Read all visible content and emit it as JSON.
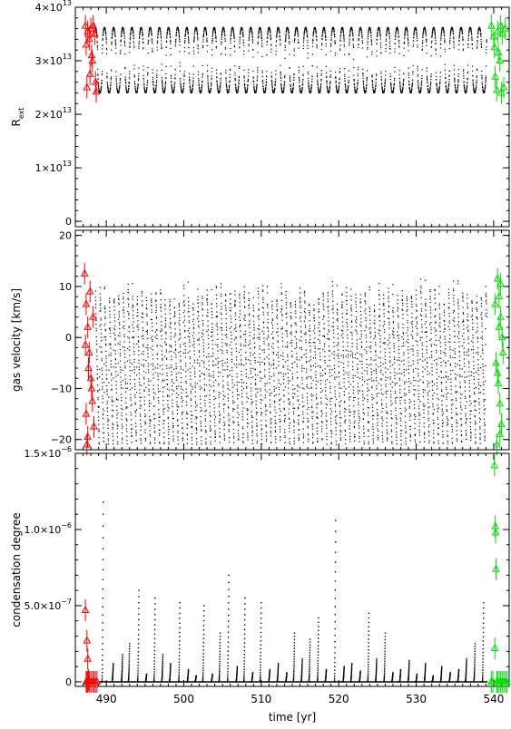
{
  "chart_data": [
    {
      "type": "scatter",
      "ylabel": "R",
      "ylabel_sub": "ext",
      "xlim": [
        486,
        542
      ],
      "ylim": [
        -1000000000000.0,
        40000000000000.0
      ],
      "yticks": [
        {
          "v": 0,
          "mant": "0",
          "exp": ""
        },
        {
          "v": 10000000000000.0,
          "mant": "1×10",
          "exp": "13"
        },
        {
          "v": 20000000000000.0,
          "mant": "2×10",
          "exp": "13"
        },
        {
          "v": 30000000000000.0,
          "mant": "3×10",
          "exp": "13"
        },
        {
          "v": 40000000000000.0,
          "mant": "4×10",
          "exp": "13"
        }
      ],
      "series": [
        {
          "color": "#000000",
          "marker": "dot",
          "mode": "periodic",
          "x_start": 488.6,
          "x_end": 539.1,
          "period": 1.18,
          "y_min": 24000000000000.0,
          "y_max": 36200000000000.0
        },
        {
          "color": "#ff0000",
          "marker": "triangle",
          "x": [
            487.3,
            487.6,
            487.8,
            487.5,
            487.9,
            488.1,
            488.3,
            488.5,
            488.2,
            488.7,
            487.4,
            488.6,
            488.0
          ],
          "y": [
            36500000000000.0,
            35500000000000.0,
            34000000000000.0,
            25000000000000.0,
            27500000000000.0,
            31000000000000.0,
            36500000000000.0,
            35000000000000.0,
            30000000000000.0,
            24200000000000.0,
            33000000000000.0,
            26000000000000.0,
            36000000000000.0
          ]
        },
        {
          "color": "#00dd00",
          "marker": "triangle",
          "x": [
            539.7,
            540.0,
            540.2,
            540.4,
            540.6,
            540.9,
            541.1,
            541.3,
            540.1,
            540.8,
            541.0,
            541.5,
            540.5
          ],
          "y": [
            36500000000000.0,
            34500000000000.0,
            27000000000000.0,
            24500000000000.0,
            31500000000000.0,
            36500000000000.0,
            35000000000000.0,
            25000000000000.0,
            32500000000000.0,
            30000000000000.0,
            24000000000000.0,
            36000000000000.0,
            35500000000000.0
          ]
        }
      ]
    },
    {
      "type": "scatter",
      "ylabel": "gas velocity [km/s]",
      "xlim": [
        486,
        542
      ],
      "ylim": [
        -22,
        21
      ],
      "yticks": [
        {
          "v": -20,
          "mant": "−20",
          "exp": ""
        },
        {
          "v": -10,
          "mant": "−10",
          "exp": ""
        },
        {
          "v": 0,
          "mant": "0",
          "exp": ""
        },
        {
          "v": 10,
          "mant": "10",
          "exp": ""
        },
        {
          "v": 20,
          "mant": "20",
          "exp": ""
        }
      ],
      "series": [
        {
          "color": "#000000",
          "marker": "dot",
          "mode": "sawtooth",
          "x_start": 488.6,
          "x_end": 539.1,
          "period": 0.6,
          "y_min": -21,
          "y_max": 11.5
        },
        {
          "color": "#ff0000",
          "marker": "triangle",
          "x": [
            487.2,
            487.4,
            487.6,
            487.8,
            488.0,
            488.2,
            488.4,
            487.5,
            487.9,
            488.3,
            487.3,
            487.7,
            488.1,
            487.4,
            487.6
          ],
          "y": [
            12.5,
            6.5,
            2.0,
            -3.0,
            -8.0,
            -12.5,
            -17.5,
            -21.0,
            9.0,
            4.0,
            -1.5,
            -6.0,
            -10.0,
            -15.0,
            -19.5
          ]
        },
        {
          "color": "#00dd00",
          "marker": "triangle",
          "x": [
            540.5,
            540.7,
            540.9,
            541.1,
            540.3,
            540.6,
            540.8,
            541.0,
            540.4,
            540.9,
            540.2,
            540.7,
            541.2,
            540.5,
            540.8
          ],
          "y": [
            11.5,
            8.0,
            4.0,
            0.0,
            -5.0,
            -9.0,
            -13.0,
            -17.0,
            -21.0,
            10.5,
            6.5,
            2.0,
            -3.0,
            -7.0,
            -19.0
          ]
        }
      ]
    },
    {
      "type": "scatter",
      "ylabel": "condensation degree",
      "xlabel": "time [yr]",
      "xlim": [
        486,
        542
      ],
      "ylim": [
        -3e-08,
        1.5e-06
      ],
      "xticks": [
        490,
        500,
        510,
        520,
        530,
        540
      ],
      "yticks": [
        {
          "v": 0,
          "mant": "0",
          "exp": ""
        },
        {
          "v": 5e-07,
          "mant": "5.0×10",
          "exp": "−7"
        },
        {
          "v": 1e-06,
          "mant": "1.0×10",
          "exp": "−6"
        },
        {
          "v": 1.5e-06,
          "mant": "1.5×10",
          "exp": "−6"
        }
      ],
      "series": [
        {
          "color": "#000000",
          "marker": "dot",
          "mode": "spikes",
          "x": [
            489.6,
            490.9,
            492.1,
            493.0,
            494.2,
            495.2,
            496.3,
            497.3,
            498.3,
            499.5,
            500.6,
            501.6,
            502.6,
            503.7,
            504.7,
            505.8,
            506.9,
            507.9,
            508.9,
            510.0,
            511.1,
            512.2,
            513.3,
            514.3,
            515.3,
            516.3,
            517.4,
            518.4,
            519.6,
            520.7,
            521.7,
            522.8,
            523.9,
            524.9,
            526.0,
            527.0,
            528.0,
            529.1,
            530.1,
            531.2,
            532.2,
            533.3,
            534.4,
            535.5,
            536.5,
            537.6,
            538.7
          ],
          "y": [
            1.18e-06,
            1.2e-07,
            1.8e-07,
            2.5e-07,
            6e-07,
            5e-08,
            5.5e-07,
            1.8e-07,
            1.2e-07,
            5.2e-07,
            8e-08,
            4e-08,
            5e-07,
            5e-08,
            3.2e-07,
            7e-07,
            1e-07,
            5.5e-07,
            6e-08,
            5.2e-07,
            8e-08,
            1.2e-07,
            6e-08,
            3.2e-07,
            1.5e-07,
            2.8e-07,
            4.2e-07,
            8e-08,
            1.06e-06,
            1e-07,
            1.2e-07,
            7e-08,
            4.5e-07,
            1.5e-07,
            3.2e-07,
            6e-08,
            8e-08,
            1.4e-07,
            5e-08,
            1.2e-07,
            4e-08,
            1e-07,
            6e-08,
            8e-08,
            1.5e-07,
            2.5e-07,
            5.2e-07
          ]
        },
        {
          "color": "#ff0000",
          "marker": "triangle",
          "x": [
            487.3,
            487.5,
            487.6,
            487.8,
            488.0,
            488.2,
            488.4,
            488.6,
            488.8,
            487.4,
            487.6,
            487.5,
            487.7
          ],
          "y": [
            4.7e-07,
            2.7e-07,
            1.5e-07,
            0.0,
            0.0,
            0.0,
            0.0,
            0.0,
            0.0,
            0.0,
            0.0,
            0.0,
            1e-08
          ]
        },
        {
          "color": "#00dd00",
          "marker": "triangle",
          "x": [
            540.1,
            540.2,
            540.25,
            540.3,
            540.15,
            539.9,
            539.7,
            540.5,
            540.7,
            540.9,
            541.1,
            541.3,
            541.5,
            540.4,
            541.7
          ],
          "y": [
            1.42e-06,
            1.02e-06,
            9.8e-07,
            7.4e-07,
            2.2e-07,
            0.0,
            0.0,
            0.0,
            0.0,
            0.0,
            0.0,
            0.0,
            0.0,
            0.0,
            0.0
          ]
        }
      ]
    }
  ]
}
